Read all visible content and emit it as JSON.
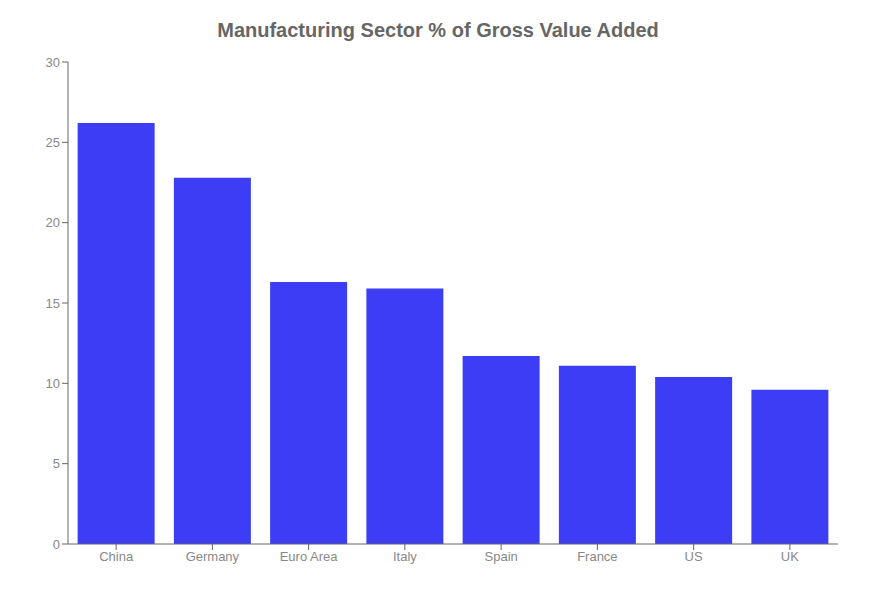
{
  "chart_data": {
    "type": "bar",
    "title": "Manufacturing Sector % of Gross Value Added",
    "categories": [
      "China",
      "Germany",
      "Euro Area",
      "Italy",
      "Spain",
      "France",
      "US",
      "UK"
    ],
    "values": [
      26.2,
      22.8,
      16.3,
      15.9,
      11.7,
      11.1,
      10.4,
      9.6
    ],
    "color": "#3d3df5",
    "ylim": [
      0,
      30
    ],
    "yticks": [
      0,
      5,
      10,
      15,
      20,
      25,
      30
    ],
    "grid": false
  }
}
